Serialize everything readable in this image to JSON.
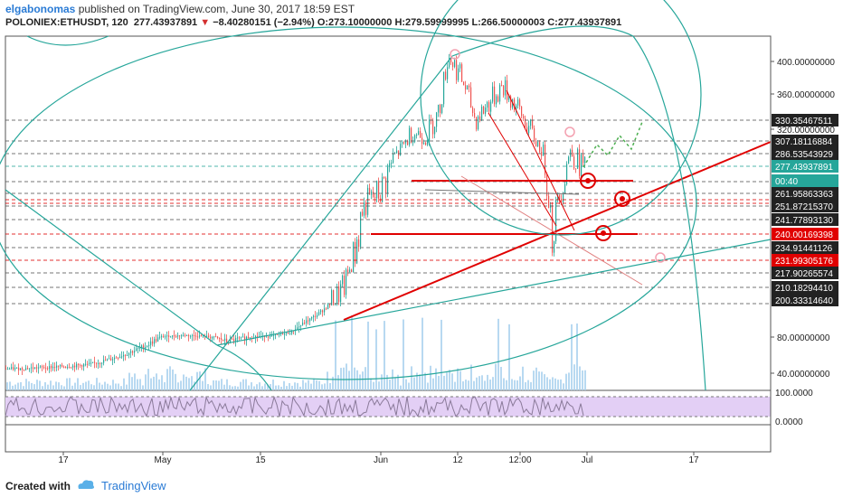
{
  "header": {
    "username": "elgabonomas",
    "published_text": "published on TradingView.com, June 30, 2017 18:59 EST",
    "symbol": "POLONIEX:ETHUSDT, 120",
    "last": "277.43937891",
    "arrow": "▼",
    "change": "−8.40280151 (−2.94%)",
    "ohlc": "O:273.10000000  H:279.59999995  L:266.50000003  C:277.43937891"
  },
  "footer": {
    "created_with": "Created with",
    "brand": "TradingView"
  },
  "colors": {
    "up": "#26a69a",
    "down": "#ef5350",
    "red_line": "#e00000",
    "teal_line": "#26a69a",
    "volume": "#a6d0ee",
    "rsi_fill": "#e3cff5",
    "rsi_line": "#8a7a99"
  },
  "chart_data": {
    "type": "candlestick",
    "price_axis_ticks": [
      "400.00000000",
      "360.00000000",
      "320.00000000",
      "80.00000000",
      "40.00000000"
    ],
    "price_levels": [
      {
        "label": "330.35467511",
        "style": "dark"
      },
      {
        "label": "307.18116884",
        "style": "dark"
      },
      {
        "label": "286.53543929",
        "style": "dark"
      },
      {
        "label": "277.43937891",
        "style": "green"
      },
      {
        "label": "00:40",
        "style": "green"
      },
      {
        "label": "261.95863363",
        "style": "dark"
      },
      {
        "label": "251.87215370",
        "style": "dark"
      },
      {
        "label": "241.77893130",
        "style": "dark"
      },
      {
        "label": "240.00169398",
        "style": "red"
      },
      {
        "label": "234.91441126",
        "style": "dark"
      },
      {
        "label": "231.99305176",
        "style": "red"
      },
      {
        "label": "217.90265574",
        "style": "dark"
      },
      {
        "label": "210.18294410",
        "style": "dark"
      },
      {
        "label": "200.33314640",
        "style": "dark"
      }
    ],
    "rsi_ticks": [
      "100.0000",
      "0.0000"
    ],
    "x_ticks": [
      "17",
      "May",
      "15",
      "Jun",
      "12",
      "12:00",
      "Jul",
      "17"
    ],
    "price_series": [
      [
        0,
        45
      ],
      [
        20,
        45
      ],
      [
        40,
        46
      ],
      [
        60,
        47
      ],
      [
        80,
        48
      ],
      [
        100,
        50
      ],
      [
        120,
        55
      ],
      [
        140,
        62
      ],
      [
        160,
        70
      ],
      [
        180,
        82
      ],
      [
        200,
        86
      ],
      [
        220,
        84
      ],
      [
        235,
        80
      ],
      [
        250,
        75
      ],
      [
        265,
        78
      ],
      [
        280,
        82
      ],
      [
        300,
        84
      ],
      [
        320,
        96
      ],
      [
        335,
        130
      ],
      [
        350,
        160
      ],
      [
        365,
        200
      ],
      [
        380,
        210
      ],
      [
        395,
        240
      ],
      [
        405,
        255
      ],
      [
        420,
        262
      ],
      [
        440,
        290
      ],
      [
        455,
        318
      ],
      [
        470,
        312
      ],
      [
        485,
        340
      ],
      [
        495,
        410
      ],
      [
        505,
        390
      ],
      [
        515,
        365
      ],
      [
        525,
        330
      ],
      [
        540,
        350
      ],
      [
        555,
        370
      ],
      [
        570,
        345
      ],
      [
        585,
        320
      ],
      [
        600,
        290
      ],
      [
        610,
        240
      ],
      [
        620,
        265
      ],
      [
        630,
        290
      ],
      [
        645,
        277
      ]
    ]
  }
}
